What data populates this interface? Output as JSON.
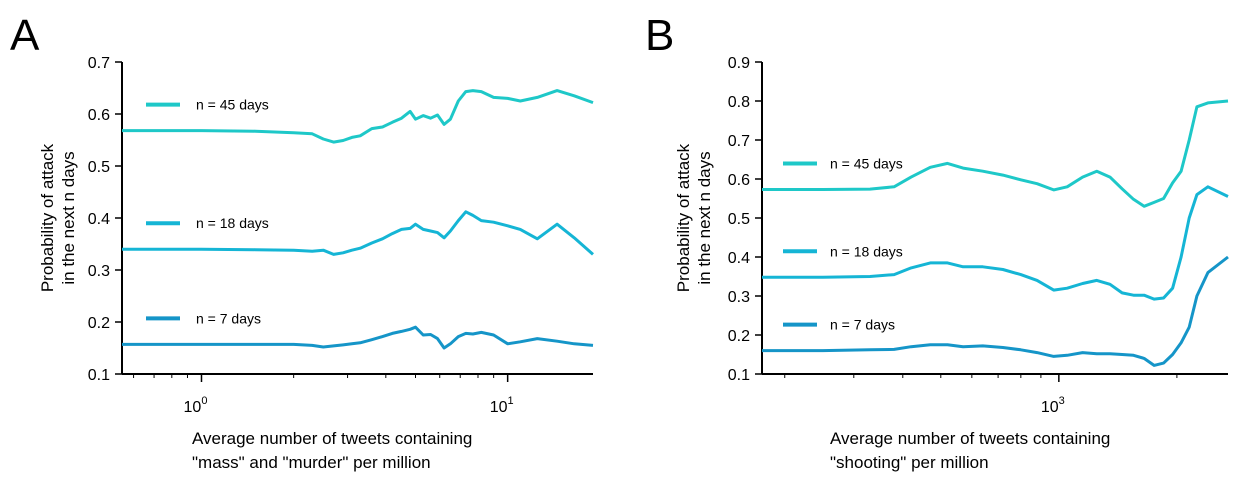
{
  "chart_data": [
    {
      "panel_label": "A",
      "type": "line",
      "xlabel": [
        "Average number of tweets containing",
        "\"mass\" and \"murder\" per million"
      ],
      "ylabel": [
        "Probability of attack",
        "in the next n days"
      ],
      "xscale": "log",
      "xlim": [
        0.55,
        19
      ],
      "ylim": [
        0.1,
        0.7
      ],
      "yticks": [
        "0.1",
        "0.2",
        "0.3",
        "0.4",
        "0.5",
        "0.6",
        "0.7"
      ],
      "xtick_labels": [
        {
          "value": 1,
          "base": "10",
          "exp": "0"
        },
        {
          "value": 10,
          "base": "10",
          "exp": "1"
        }
      ],
      "grid": false,
      "legend": "inline labels at left",
      "series": [
        {
          "name": "n = 45 days",
          "color": "#1ec8c8",
          "points": [
            [
              0.55,
              0.568
            ],
            [
              1.0,
              0.568
            ],
            [
              1.5,
              0.567
            ],
            [
              2.0,
              0.564
            ],
            [
              2.3,
              0.562
            ],
            [
              2.5,
              0.552
            ],
            [
              2.7,
              0.546
            ],
            [
              2.9,
              0.549
            ],
            [
              3.1,
              0.555
            ],
            [
              3.3,
              0.558
            ],
            [
              3.6,
              0.572
            ],
            [
              3.9,
              0.575
            ],
            [
              4.2,
              0.584
            ],
            [
              4.5,
              0.592
            ],
            [
              4.8,
              0.605
            ],
            [
              5.0,
              0.59
            ],
            [
              5.3,
              0.597
            ],
            [
              5.6,
              0.592
            ],
            [
              5.9,
              0.598
            ],
            [
              6.2,
              0.58
            ],
            [
              6.5,
              0.59
            ],
            [
              6.9,
              0.625
            ],
            [
              7.3,
              0.643
            ],
            [
              7.7,
              0.645
            ],
            [
              8.2,
              0.643
            ],
            [
              9.0,
              0.632
            ],
            [
              10.0,
              0.63
            ],
            [
              11.0,
              0.625
            ],
            [
              12.5,
              0.632
            ],
            [
              14.5,
              0.645
            ],
            [
              16.5,
              0.635
            ],
            [
              19.0,
              0.622
            ]
          ]
        },
        {
          "name": "n = 18 days",
          "color": "#15b5d5",
          "points": [
            [
              0.55,
              0.34
            ],
            [
              1.0,
              0.34
            ],
            [
              1.5,
              0.339
            ],
            [
              2.0,
              0.338
            ],
            [
              2.3,
              0.336
            ],
            [
              2.5,
              0.338
            ],
            [
              2.7,
              0.33
            ],
            [
              2.9,
              0.333
            ],
            [
              3.1,
              0.338
            ],
            [
              3.3,
              0.342
            ],
            [
              3.6,
              0.352
            ],
            [
              3.9,
              0.36
            ],
            [
              4.2,
              0.37
            ],
            [
              4.5,
              0.378
            ],
            [
              4.8,
              0.38
            ],
            [
              5.0,
              0.388
            ],
            [
              5.3,
              0.378
            ],
            [
              5.6,
              0.375
            ],
            [
              5.9,
              0.372
            ],
            [
              6.2,
              0.362
            ],
            [
              6.5,
              0.375
            ],
            [
              6.9,
              0.395
            ],
            [
              7.3,
              0.412
            ],
            [
              7.7,
              0.405
            ],
            [
              8.2,
              0.395
            ],
            [
              9.0,
              0.392
            ],
            [
              10.0,
              0.385
            ],
            [
              11.0,
              0.378
            ],
            [
              12.5,
              0.36
            ],
            [
              14.5,
              0.388
            ],
            [
              16.5,
              0.362
            ],
            [
              19.0,
              0.33
            ]
          ]
        },
        {
          "name": "n = 7 days",
          "color": "#1595c8",
          "points": [
            [
              0.55,
              0.157
            ],
            [
              1.0,
              0.157
            ],
            [
              1.5,
              0.157
            ],
            [
              2.0,
              0.157
            ],
            [
              2.3,
              0.155
            ],
            [
              2.5,
              0.152
            ],
            [
              2.7,
              0.154
            ],
            [
              2.9,
              0.156
            ],
            [
              3.1,
              0.158
            ],
            [
              3.3,
              0.16
            ],
            [
              3.6,
              0.166
            ],
            [
              3.9,
              0.172
            ],
            [
              4.2,
              0.178
            ],
            [
              4.5,
              0.182
            ],
            [
              4.8,
              0.186
            ],
            [
              5.0,
              0.19
            ],
            [
              5.3,
              0.175
            ],
            [
              5.6,
              0.176
            ],
            [
              5.9,
              0.168
            ],
            [
              6.2,
              0.15
            ],
            [
              6.5,
              0.158
            ],
            [
              6.9,
              0.172
            ],
            [
              7.3,
              0.178
            ],
            [
              7.7,
              0.177
            ],
            [
              8.2,
              0.18
            ],
            [
              9.0,
              0.175
            ],
            [
              10.0,
              0.158
            ],
            [
              11.0,
              0.162
            ],
            [
              12.5,
              0.168
            ],
            [
              14.5,
              0.163
            ],
            [
              16.5,
              0.158
            ],
            [
              19.0,
              0.155
            ]
          ]
        }
      ]
    },
    {
      "panel_label": "B",
      "type": "line",
      "xlabel": [
        "Average number of tweets containing",
        "\"shooting\" per million"
      ],
      "ylabel": [
        "Probability of attack",
        "in the next n days"
      ],
      "xscale": "log",
      "xlim": [
        175,
        2700
      ],
      "ylim": [
        0.1,
        0.9
      ],
      "yticks": [
        "0.1",
        "0.2",
        "0.3",
        "0.4",
        "0.5",
        "0.6",
        "0.7",
        "0.8",
        "0.9"
      ],
      "xtick_labels": [
        {
          "value": 1000,
          "base": "10",
          "exp": "3"
        }
      ],
      "grid": false,
      "legend": "inline labels at left",
      "series": [
        {
          "name": "n = 45 days",
          "color": "#1ec8c8",
          "points": [
            [
              175,
              0.573
            ],
            [
              250,
              0.573
            ],
            [
              330,
              0.574
            ],
            [
              380,
              0.58
            ],
            [
              420,
              0.605
            ],
            [
              470,
              0.63
            ],
            [
              520,
              0.64
            ],
            [
              570,
              0.628
            ],
            [
              640,
              0.62
            ],
            [
              720,
              0.61
            ],
            [
              800,
              0.598
            ],
            [
              880,
              0.588
            ],
            [
              970,
              0.572
            ],
            [
              1050,
              0.58
            ],
            [
              1150,
              0.605
            ],
            [
              1250,
              0.62
            ],
            [
              1350,
              0.605
            ],
            [
              1450,
              0.575
            ],
            [
              1550,
              0.548
            ],
            [
              1650,
              0.53
            ],
            [
              1750,
              0.54
            ],
            [
              1850,
              0.55
            ],
            [
              1950,
              0.59
            ],
            [
              2050,
              0.62
            ],
            [
              2150,
              0.7
            ],
            [
              2250,
              0.785
            ],
            [
              2400,
              0.795
            ],
            [
              2700,
              0.8
            ]
          ]
        },
        {
          "name": "n = 18 days",
          "color": "#15b5d5",
          "points": [
            [
              175,
              0.348
            ],
            [
              250,
              0.348
            ],
            [
              330,
              0.35
            ],
            [
              380,
              0.355
            ],
            [
              420,
              0.372
            ],
            [
              470,
              0.385
            ],
            [
              520,
              0.385
            ],
            [
              570,
              0.375
            ],
            [
              640,
              0.375
            ],
            [
              720,
              0.368
            ],
            [
              800,
              0.355
            ],
            [
              880,
              0.34
            ],
            [
              970,
              0.315
            ],
            [
              1050,
              0.32
            ],
            [
              1150,
              0.332
            ],
            [
              1250,
              0.34
            ],
            [
              1350,
              0.33
            ],
            [
              1450,
              0.308
            ],
            [
              1550,
              0.302
            ],
            [
              1650,
              0.302
            ],
            [
              1750,
              0.292
            ],
            [
              1850,
              0.295
            ],
            [
              1950,
              0.32
            ],
            [
              2050,
              0.4
            ],
            [
              2150,
              0.5
            ],
            [
              2250,
              0.56
            ],
            [
              2400,
              0.58
            ],
            [
              2700,
              0.555
            ]
          ]
        },
        {
          "name": "n = 7 days",
          "color": "#1595c8",
          "points": [
            [
              175,
              0.16
            ],
            [
              250,
              0.16
            ],
            [
              330,
              0.162
            ],
            [
              380,
              0.163
            ],
            [
              420,
              0.17
            ],
            [
              470,
              0.175
            ],
            [
              520,
              0.175
            ],
            [
              570,
              0.17
            ],
            [
              640,
              0.172
            ],
            [
              720,
              0.168
            ],
            [
              800,
              0.162
            ],
            [
              880,
              0.155
            ],
            [
              970,
              0.145
            ],
            [
              1050,
              0.148
            ],
            [
              1150,
              0.155
            ],
            [
              1250,
              0.152
            ],
            [
              1350,
              0.152
            ],
            [
              1450,
              0.15
            ],
            [
              1550,
              0.148
            ],
            [
              1650,
              0.14
            ],
            [
              1750,
              0.122
            ],
            [
              1850,
              0.128
            ],
            [
              1950,
              0.15
            ],
            [
              2050,
              0.18
            ],
            [
              2150,
              0.22
            ],
            [
              2250,
              0.3
            ],
            [
              2400,
              0.36
            ],
            [
              2700,
              0.4
            ]
          ]
        }
      ]
    }
  ]
}
